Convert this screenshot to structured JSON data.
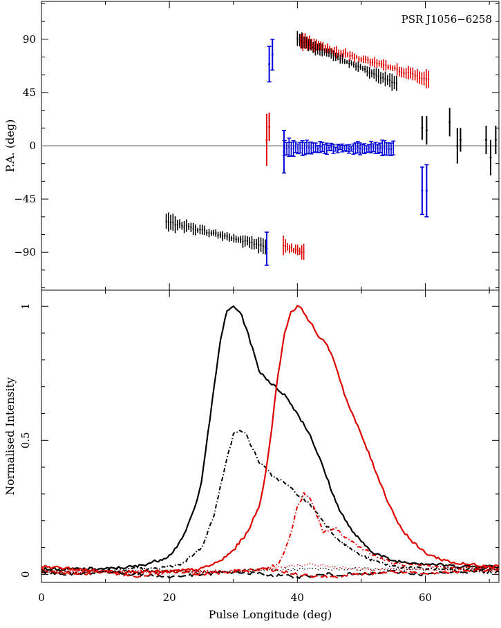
{
  "chart_data": [
    {
      "type": "scatter",
      "panel": "position-angle",
      "title": "PSR J1056−6258",
      "xlabel": "",
      "ylabel": "P.A. (deg)",
      "xlim": [
        0,
        71.5
      ],
      "ylim": [
        -122,
        122
      ],
      "yticks": [
        {
          "value": 90,
          "label": "90"
        },
        {
          "value": 45,
          "label": "45"
        },
        {
          "value": 0,
          "label": "0"
        },
        {
          "value": -45,
          "label": "−45"
        },
        {
          "value": -90,
          "label": "−90"
        }
      ],
      "reference_line": 0,
      "series": [
        {
          "color": "#000000",
          "segments": [
            {
              "x": [
                19.5,
                35.0
              ],
              "y": [
                -64,
                -85
              ]
            },
            {
              "x": [
                40.0,
                55.5
              ],
              "y": [
                90,
                52
              ]
            }
          ],
          "scatter_x": [
            59.5,
            60.2,
            63.8,
            65.0,
            65.5,
            69.5,
            70.2,
            71.0
          ],
          "scatter_y": [
            15,
            13,
            20,
            0,
            5,
            5,
            -10,
            5
          ],
          "scatter_err": [
            10,
            12,
            12,
            15,
            10,
            12,
            15,
            12
          ]
        },
        {
          "color": "#e00000",
          "segments": [
            {
              "x": [
                40.5,
                60.5
              ],
              "y": [
                89,
                56
              ]
            },
            {
              "x": [
                37.8,
                41.0
              ],
              "y": [
                -85,
                -90
              ]
            }
          ],
          "scatter_x": [
            35.2,
            35.6
          ],
          "scatter_y": [
            5,
            16
          ],
          "scatter_err": [
            22,
            12
          ]
        },
        {
          "color": "#0000dd",
          "segments": [
            {
              "x": [
                38.0,
                55.0
              ],
              "y": [
                -2,
                -2
              ]
            }
          ],
          "scatter_x": [
            36.1,
            35.6,
            35.2,
            59.5,
            60.2,
            37.9
          ],
          "scatter_y": [
            77,
            69,
            -87,
            -38,
            -38,
            -5
          ],
          "scatter_err": [
            13,
            15,
            14,
            20,
            22,
            18
          ]
        }
      ]
    },
    {
      "type": "line",
      "panel": "intensity",
      "xlabel": "Pulse Longitude (deg)",
      "ylabel": "Normalised Intensity",
      "xlim": [
        0,
        71.5
      ],
      "ylim": [
        -0.03,
        1.06
      ],
      "xticks": [
        {
          "value": 0,
          "label": "0"
        },
        {
          "value": 20,
          "label": "20"
        },
        {
          "value": 40,
          "label": "40"
        },
        {
          "value": 60,
          "label": "60"
        }
      ],
      "yticks": [
        {
          "value": 0,
          "label": "0"
        },
        {
          "value": 0.5,
          "label": "0.5"
        },
        {
          "value": 1,
          "label": "1"
        }
      ],
      "series": [
        {
          "color": "#000000",
          "dash": "solid",
          "x": [
            0,
            10,
            15,
            18,
            20,
            22,
            24,
            25,
            26,
            27,
            28,
            29,
            30,
            31,
            32,
            33,
            34,
            36,
            38,
            40,
            42,
            44,
            46,
            48,
            50,
            52,
            55,
            60,
            65,
            71.5
          ],
          "y": [
            0.02,
            0.02,
            0.03,
            0.05,
            0.07,
            0.13,
            0.25,
            0.35,
            0.52,
            0.7,
            0.88,
            0.98,
            1.0,
            0.98,
            0.92,
            0.84,
            0.76,
            0.71,
            0.67,
            0.6,
            0.52,
            0.4,
            0.27,
            0.18,
            0.12,
            0.08,
            0.05,
            0.04,
            0.03,
            0.03
          ]
        },
        {
          "color": "#000000",
          "dash": "dashdot",
          "x": [
            0,
            18,
            22,
            25,
            27,
            28,
            29,
            30,
            31,
            32,
            33,
            34,
            36,
            38,
            40,
            42,
            44,
            46,
            48,
            50,
            52,
            55,
            60,
            71.5
          ],
          "y": [
            0.02,
            0.02,
            0.04,
            0.1,
            0.22,
            0.33,
            0.44,
            0.52,
            0.54,
            0.52,
            0.47,
            0.42,
            0.37,
            0.34,
            0.3,
            0.26,
            0.2,
            0.14,
            0.1,
            0.07,
            0.05,
            0.03,
            0.02,
            0.02
          ]
        },
        {
          "color": "#e00000",
          "dash": "solid",
          "x": [
            0,
            10,
            20,
            25,
            28,
            30,
            32,
            34,
            35,
            36,
            37,
            38,
            39,
            40,
            41,
            42,
            43,
            44,
            45,
            46,
            47,
            48,
            50,
            52,
            54,
            56,
            58,
            60,
            62,
            65,
            71.5
          ],
          "y": [
            0.03,
            0.01,
            0.01,
            0.02,
            0.05,
            0.09,
            0.15,
            0.25,
            0.37,
            0.55,
            0.75,
            0.9,
            0.98,
            1.0,
            0.98,
            0.94,
            0.9,
            0.87,
            0.84,
            0.78,
            0.7,
            0.63,
            0.52,
            0.4,
            0.28,
            0.18,
            0.12,
            0.08,
            0.06,
            0.04,
            0.03
          ]
        },
        {
          "color": "#e00000",
          "dash": "dashdot",
          "x": [
            0,
            20,
            30,
            35,
            37,
            38,
            39,
            40,
            41,
            42,
            43,
            44,
            46,
            48,
            50,
            52,
            55,
            60,
            71.5
          ],
          "y": [
            0.01,
            0.01,
            0.01,
            0.02,
            0.04,
            0.08,
            0.16,
            0.25,
            0.3,
            0.28,
            0.22,
            0.16,
            0.17,
            0.13,
            0.1,
            0.07,
            0.04,
            0.03,
            0.02
          ]
        },
        {
          "color": "#000000",
          "dash": "longdash",
          "x": [
            0,
            5,
            10,
            15,
            20,
            25,
            30,
            35,
            40,
            45,
            50,
            55,
            60,
            65,
            71.5
          ],
          "y": [
            0.01,
            0.0,
            0.01,
            0.0,
            -0.01,
            0.0,
            0.01,
            0.0,
            -0.01,
            0.0,
            0.0,
            0.01,
            0.0,
            0.01,
            0.01
          ]
        },
        {
          "color": "#e00000",
          "dash": "longdash",
          "x": [
            0,
            5,
            10,
            15,
            20,
            25,
            30,
            35,
            40,
            45,
            50,
            55,
            60,
            65,
            71.5
          ],
          "y": [
            0.02,
            0.0,
            0.01,
            -0.01,
            0.01,
            0.0,
            0.01,
            0.02,
            0.0,
            -0.01,
            0.0,
            0.01,
            0.0,
            0.01,
            0.02
          ]
        },
        {
          "color": "#e00000",
          "dash": "dotted",
          "x": [
            0,
            10,
            20,
            30,
            35,
            38,
            40,
            42,
            45,
            50,
            55,
            60,
            71.5
          ],
          "y": [
            0.01,
            0.01,
            0.01,
            0.01,
            0.02,
            0.03,
            0.03,
            0.04,
            0.03,
            0.02,
            0.02,
            0.02,
            0.01
          ]
        },
        {
          "color": "#000000",
          "dash": "dotted",
          "x": [
            0,
            10,
            20,
            30,
            40,
            50,
            60,
            71.5
          ],
          "y": [
            0.01,
            0.01,
            0.01,
            0.01,
            0.02,
            0.02,
            0.02,
            0.02
          ]
        }
      ]
    }
  ]
}
